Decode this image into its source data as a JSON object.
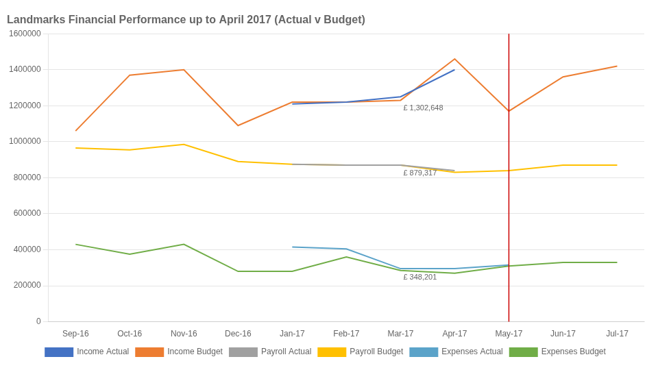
{
  "chart_data": {
    "type": "line",
    "title": "Landmarks Financial Performance up to April 2017 (Actual v Budget)",
    "categories": [
      "Sep-16",
      "Oct-16",
      "Nov-16",
      "Dec-16",
      "Jan-17",
      "Feb-17",
      "Mar-17",
      "Apr-17",
      "May-17",
      "Jun-17",
      "Jul-17"
    ],
    "series": [
      {
        "name": "Income Actual",
        "color": "#4472c4",
        "values": [
          null,
          null,
          null,
          null,
          1210000,
          1220000,
          1250000,
          1400000,
          null,
          null,
          null
        ]
      },
      {
        "name": "Income Budget",
        "color": "#ed7d31",
        "values": [
          1060000,
          1370000,
          1400000,
          1090000,
          1220000,
          1220000,
          1230000,
          1460000,
          1170000,
          1360000,
          1420000
        ]
      },
      {
        "name": "Payroll Actual",
        "color": "#a0a0a0",
        "values": [
          null,
          null,
          null,
          null,
          875000,
          870000,
          870000,
          840000,
          null,
          null,
          null
        ]
      },
      {
        "name": "Payroll Budget",
        "color": "#ffc000",
        "values": [
          965000,
          955000,
          985000,
          890000,
          875000,
          870000,
          870000,
          830000,
          840000,
          870000,
          870000
        ]
      },
      {
        "name": "Expenses Actual",
        "color": "#5ba3c9",
        "values": [
          null,
          null,
          null,
          null,
          415000,
          405000,
          295000,
          295000,
          315000,
          null,
          null
        ]
      },
      {
        "name": "Expenses Budget",
        "color": "#70ad47",
        "values": [
          430000,
          375000,
          430000,
          280000,
          280000,
          360000,
          285000,
          270000,
          310000,
          330000,
          330000
        ]
      }
    ],
    "annotations": [
      {
        "text": "£ 1,302,648",
        "category": "Mar-17",
        "y": 1215000
      },
      {
        "text": "£ 879,317",
        "category": "Mar-17",
        "y": 853000
      },
      {
        "text": "£ 348,201",
        "category": "Mar-17",
        "y": 276000
      }
    ],
    "vline": {
      "category": "May-17",
      "color": "#cc0000"
    },
    "ylim": [
      0,
      1600000
    ],
    "yticks": [
      0,
      200000,
      400000,
      600000,
      800000,
      1000000,
      1200000,
      1400000,
      1600000
    ],
    "grid": true,
    "legend": "bottom"
  }
}
